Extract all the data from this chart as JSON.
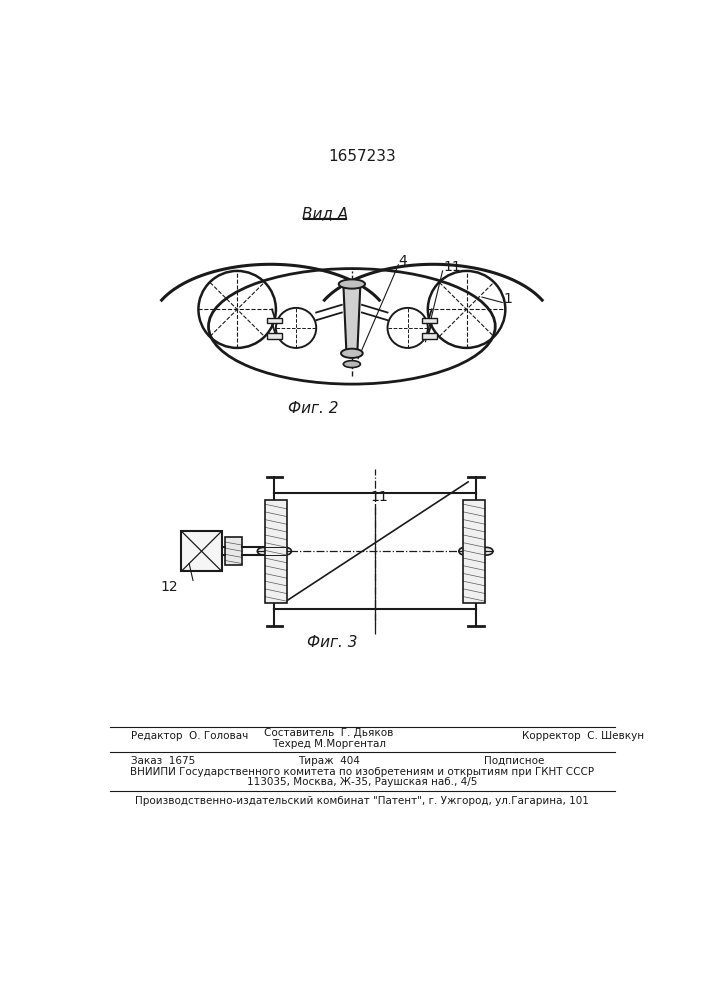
{
  "patent_number": "1657233",
  "view_label": "Вид А",
  "fig2_label": "Фиг. 2",
  "fig3_label": "Фиг. 3",
  "label_4": "4",
  "label_11_fig2": "11",
  "label_1": "1",
  "label_11_fig3": "11",
  "label_12": "12",
  "footer_editor": "Редактор  О. Головач",
  "footer_composer": "Составитель  Г. Дьяков",
  "footer_techred": "Техред М.Моргентал",
  "footer_corrector": "Корректор  С. Шевкун",
  "footer_order": "Заказ  1675",
  "footer_tirazh": "Тираж  404",
  "footer_podpisnoe": "Подписное",
  "footer_vnipi": "ВНИИПИ Государственного комитета по изобретениям и открытиям при ГКНТ СССР",
  "footer_address": "113035, Москва, Ж-35, Раушская наб., 4/5",
  "footer_kombinat": "Производственно-издательский комбинат \"Патент\", г. Ужгород, ул.Гагарина, 101",
  "bg_color": "#ffffff",
  "lc": "#1a1a1a"
}
